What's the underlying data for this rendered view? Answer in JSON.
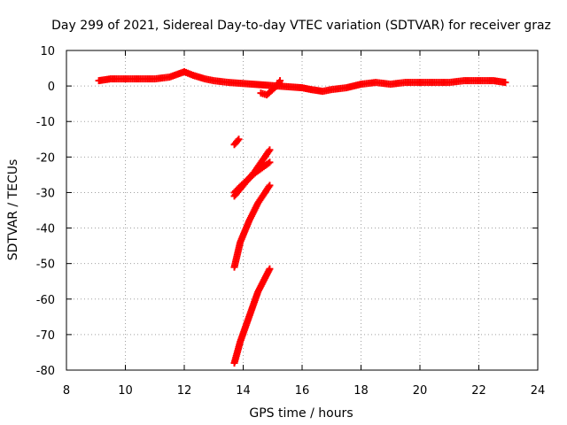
{
  "chart_data": {
    "type": "scatter",
    "title": "Day 299 of 2021, Sidereal Day-to-day VTEC variation (SDTVAR) for receiver graz",
    "xlabel": "GPS time / hours",
    "ylabel": "SDTVAR / TECUs",
    "xlim": [
      8,
      24
    ],
    "ylim": [
      -80,
      10
    ],
    "xticks": [
      8,
      10,
      12,
      14,
      16,
      18,
      20,
      22,
      24
    ],
    "yticks": [
      10,
      0,
      -10,
      -20,
      -30,
      -40,
      -50,
      -60,
      -70,
      -80
    ],
    "grid": true,
    "marker": "plus",
    "color": "#ff0000",
    "series": [
      {
        "name": "main-trace",
        "x": [
          9.1,
          9.5,
          10.0,
          10.5,
          11.0,
          11.5,
          12.0,
          12.3,
          12.7,
          13.0,
          13.5,
          16.0,
          16.3,
          16.7,
          17.0,
          17.5,
          18.0,
          18.5,
          19.0,
          19.5,
          20.0,
          20.5,
          21.0,
          21.5,
          22.0,
          22.5,
          22.9
        ],
        "y": [
          1.5,
          2.0,
          2.0,
          2.0,
          2.0,
          2.5,
          4.0,
          3.0,
          2.0,
          1.5,
          1.0,
          -0.5,
          -1.0,
          -1.5,
          -1.0,
          -0.5,
          0.5,
          1.0,
          0.5,
          1.0,
          1.0,
          1.0,
          1.0,
          1.5,
          1.5,
          1.5,
          1.0
        ]
      },
      {
        "name": "gap-points",
        "x": [
          14.6,
          14.8,
          15.2,
          15.25
        ],
        "y": [
          -2.0,
          -2.5,
          0.5,
          1.5
        ]
      },
      {
        "name": "short-drop",
        "x": [
          13.7,
          13.85
        ],
        "y": [
          -16.5,
          -15.0
        ]
      },
      {
        "name": "drop-1",
        "x": [
          13.7,
          14.0,
          14.4,
          14.9
        ],
        "y": [
          -31.0,
          -28.0,
          -24.0,
          -18.0
        ]
      },
      {
        "name": "drop-2",
        "x": [
          13.7,
          14.0,
          14.4,
          14.9
        ],
        "y": [
          -30.0,
          -27.5,
          -24.5,
          -21.5
        ]
      },
      {
        "name": "drop-3",
        "x": [
          13.7,
          13.9,
          14.2,
          14.5,
          14.9
        ],
        "y": [
          -51.0,
          -44.0,
          -38.0,
          -33.0,
          -28.0
        ]
      },
      {
        "name": "drop-4",
        "x": [
          13.7,
          13.9,
          14.2,
          14.5,
          14.9
        ],
        "y": [
          -78.0,
          -72.0,
          -65.0,
          -58.0,
          -51.5
        ]
      }
    ]
  }
}
